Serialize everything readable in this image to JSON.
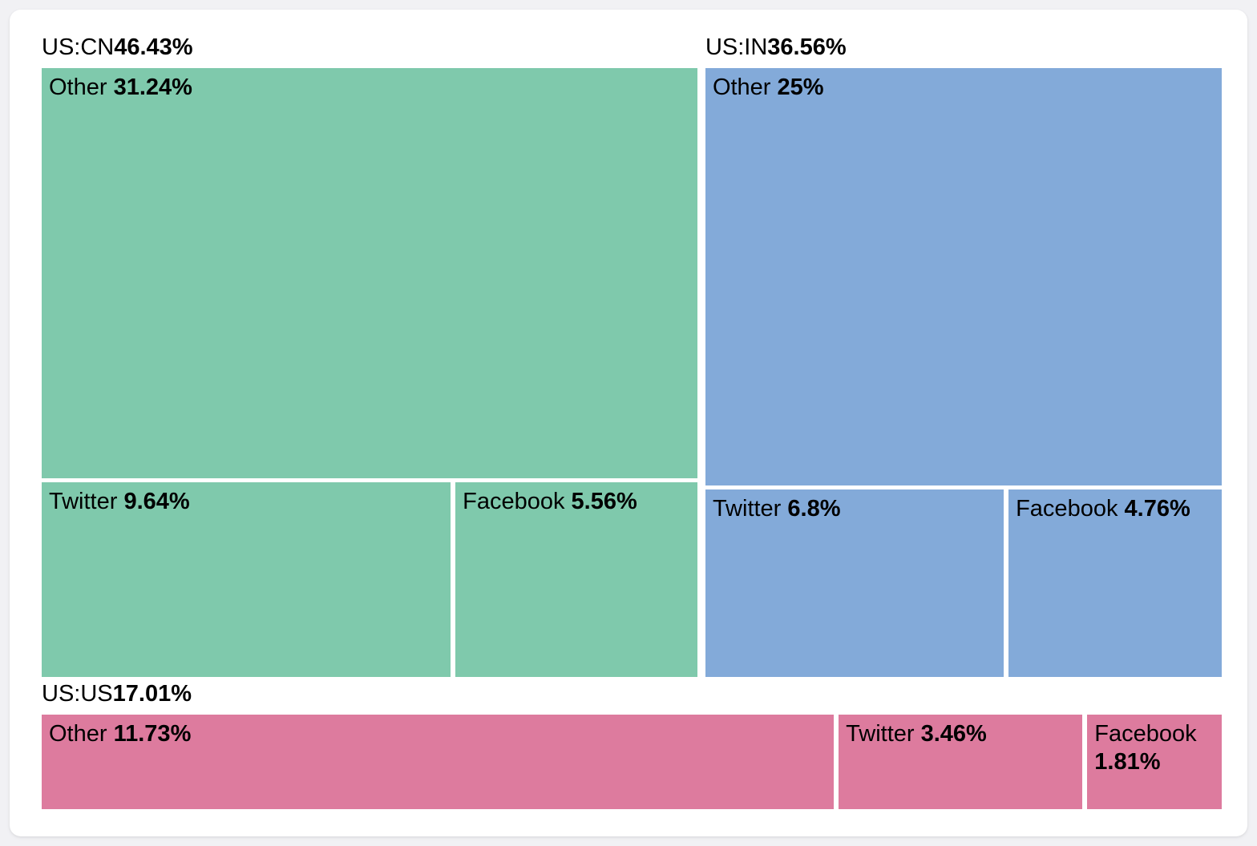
{
  "chart_data": {
    "type": "treemap",
    "title": "",
    "legend_position": "none",
    "grid": false,
    "text_color": "#000000",
    "card_background": "#ffffff",
    "page_background": "#f1f1f4",
    "groups": [
      {
        "name": "US:CN",
        "total": 46.43,
        "total_label": "46.43%",
        "color": "#7fc9ac",
        "layout": "stacked",
        "items": [
          {
            "name": "Other",
            "value": 31.24,
            "label": "31.24%"
          },
          {
            "name": "Twitter",
            "value": 9.64,
            "label": "9.64%"
          },
          {
            "name": "Facebook",
            "value": 5.56,
            "label": "5.56%"
          }
        ]
      },
      {
        "name": "US:IN",
        "total": 36.56,
        "total_label": "36.56%",
        "color": "#83aad9",
        "layout": "stacked",
        "items": [
          {
            "name": "Other",
            "value": 25,
            "label": "25%"
          },
          {
            "name": "Twitter",
            "value": 6.8,
            "label": "6.8%"
          },
          {
            "name": "Facebook",
            "value": 4.76,
            "label": "4.76%"
          }
        ]
      },
      {
        "name": "US:US",
        "total": 17.01,
        "total_label": "17.01%",
        "color": "#dd7b9e",
        "layout": "row",
        "items": [
          {
            "name": "Other",
            "value": 11.73,
            "label": "11.73%"
          },
          {
            "name": "Twitter",
            "value": 3.46,
            "label": "3.46%"
          },
          {
            "name": "Facebook",
            "value": 1.81,
            "label": "1.81%"
          }
        ]
      }
    ]
  }
}
